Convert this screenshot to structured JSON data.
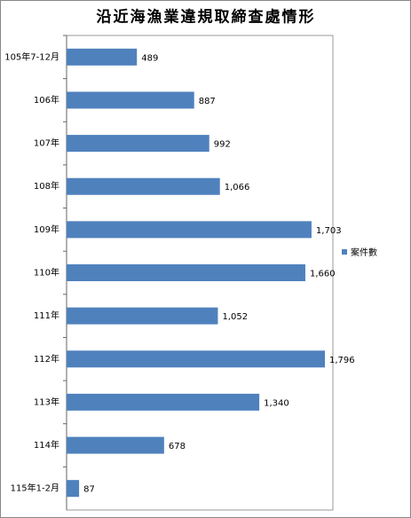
{
  "chart_data": {
    "type": "bar",
    "orientation": "horizontal",
    "title": "沿近海漁業違規取締查處情形",
    "categories": [
      "105年7-12月",
      "106年",
      "107年",
      "108年",
      "109年",
      "110年",
      "111年",
      "112年",
      "113年",
      "114年",
      "115年1-2月"
    ],
    "series": [
      {
        "name": "案件數",
        "color": "#4f81bd",
        "values": [
          489,
          887,
          992,
          1066,
          1703,
          1660,
          1052,
          1796,
          1340,
          678,
          87
        ],
        "value_labels": [
          "489",
          "887",
          "992",
          "1,066",
          "1,703",
          "1,660",
          "1,052",
          "1,796",
          "1,340",
          "678",
          "87"
        ]
      }
    ],
    "legend": "right"
  }
}
